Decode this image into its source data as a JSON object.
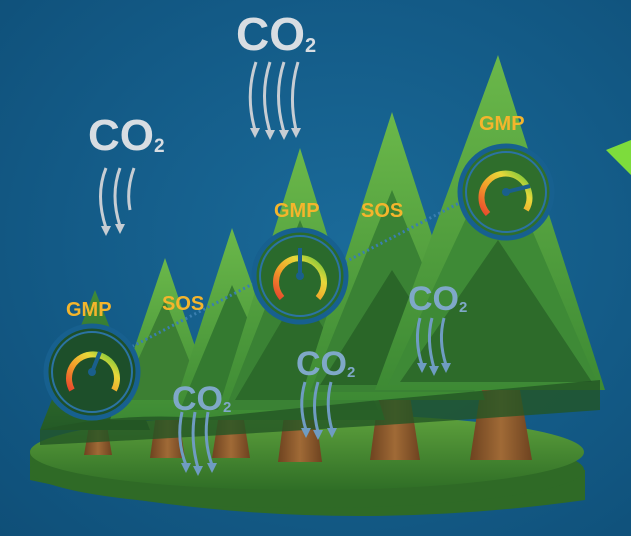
{
  "co2_labels": [
    {
      "main": "CO",
      "sub": "2"
    },
    {
      "main": "CO",
      "sub": "2"
    },
    {
      "main": "CO",
      "sub": "2"
    },
    {
      "main": "CO",
      "sub": "2"
    },
    {
      "main": "CO",
      "sub": "2"
    }
  ],
  "tags": {
    "gmp_left": "GMP",
    "sos_left": "SOS",
    "gmp_center": "GMP",
    "sos_center": "SOS",
    "gmp_right": "GMP"
  },
  "colors": {
    "background": "#155f8c",
    "label": "#f4b52c",
    "co2_sky": "#d8dde2",
    "co2_soil": "#7fa8c8",
    "tree_light": "#4e9a3a",
    "tree_dark": "#2f6e2c",
    "trunk": "#8a5a2c",
    "ground": "#4b8b35",
    "gauge_ring": "#1a5f8c"
  }
}
